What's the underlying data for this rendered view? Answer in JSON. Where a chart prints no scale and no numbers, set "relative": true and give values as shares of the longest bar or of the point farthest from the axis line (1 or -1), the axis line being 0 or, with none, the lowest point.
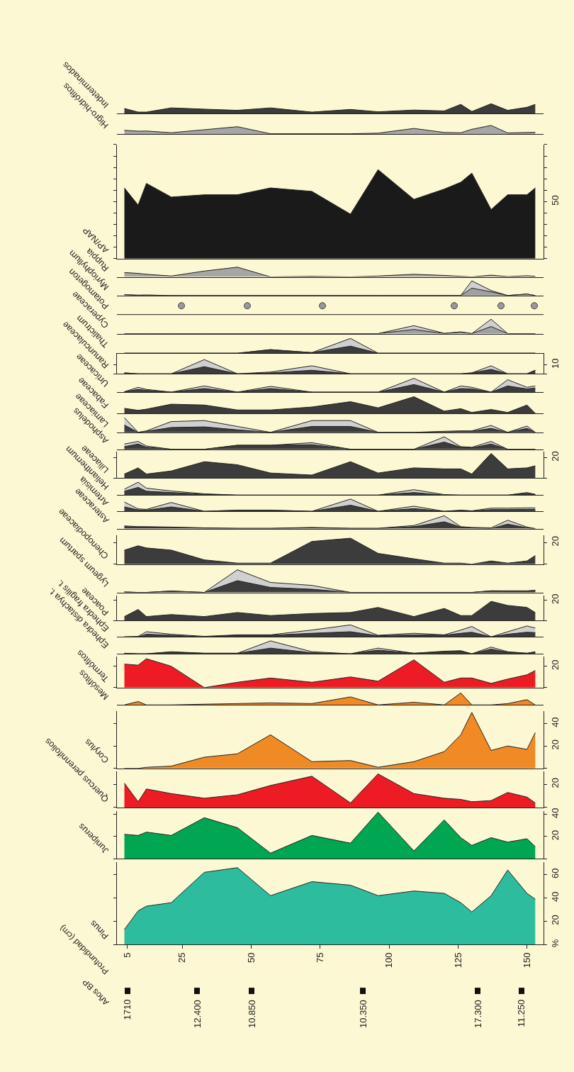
{
  "chart_data": [
    {
      "type": "area",
      "title": "Indeterminados",
      "relative": true,
      "tick_labels": false,
      "xlim": [
        1.3,
        156
      ],
      "x": [
        4,
        9,
        12,
        21,
        33,
        45,
        57,
        72,
        86,
        96,
        109,
        120,
        126,
        130,
        137,
        143,
        150,
        153
      ],
      "color": "#3c3c3c",
      "values": [
        0.52,
        0.15,
        0.15,
        0.58,
        0.45,
        0.33,
        0.58,
        0.15,
        0.42,
        0.18,
        0.36,
        0.27,
        0.94,
        0.21,
        1,
        0.33,
        0.64,
        0.94
      ]
    },
    {
      "type": "area",
      "title": "Higro-hidrófitos",
      "relative": true,
      "tick_labels": false,
      "xlim": [
        1.3,
        156
      ],
      "x": [
        4,
        9,
        12,
        21,
        33,
        45,
        57,
        72,
        86,
        96,
        109,
        120,
        126,
        130,
        137,
        143,
        150,
        153
      ],
      "color": "#a6a6a6",
      "values": [
        0.43,
        0.33,
        0.35,
        0.15,
        0.5,
        0.85,
        0.03,
        0.03,
        0.03,
        0.1,
        0.65,
        0.18,
        0.15,
        0.55,
        1,
        0.13,
        0.18,
        0.2
      ]
    },
    {
      "type": "area",
      "title": "AP/NAP",
      "tick_labels": "y",
      "xlim": [
        1.3,
        156
      ],
      "ylim": [
        0,
        100
      ],
      "yticks": [
        {
          "value": 0,
          "label": null
        },
        {
          "value": 10,
          "label": null
        },
        {
          "value": 20,
          "label": null
        },
        {
          "value": 30,
          "label": null
        },
        {
          "value": 40,
          "label": null
        },
        50,
        {
          "value": 60,
          "label": null
        },
        {
          "value": 70,
          "label": null
        },
        {
          "value": 80,
          "label": null
        },
        {
          "value": 90,
          "label": null
        },
        {
          "value": 100,
          "label": null
        }
      ],
      "x": [
        4,
        9,
        12,
        21,
        33,
        45,
        57,
        72,
        86,
        96,
        109,
        120,
        126,
        130,
        137,
        143,
        150,
        153
      ],
      "color": "#1a1a1a",
      "values": [
        62,
        47,
        66,
        54,
        56,
        56,
        62,
        59,
        39,
        78,
        52,
        61,
        67,
        75,
        43,
        56,
        56,
        62
      ]
    },
    {
      "type": "area",
      "title": "Ruppia",
      "relative": true,
      "tick_labels": false,
      "xlim": [
        1.3,
        156
      ],
      "x": [
        4,
        9,
        12,
        21,
        33,
        45,
        57,
        72,
        86,
        96,
        109,
        120,
        126,
        130,
        137,
        143,
        150,
        153
      ],
      "color": "#a6a6a6",
      "values": [
        0.45,
        0.36,
        0.27,
        0.09,
        0.6,
        1,
        0,
        0.06,
        0,
        0.09,
        0.27,
        0.15,
        0.06,
        0,
        0.18,
        0.03,
        0.12,
        0.06
      ]
    },
    {
      "type": "area",
      "title": "Myriophyllum",
      "relative": true,
      "tick_labels": false,
      "xlim": [
        1.3,
        156
      ],
      "x": [
        4,
        9,
        12,
        21,
        33,
        45,
        57,
        72,
        86,
        96,
        109,
        120,
        126,
        130,
        137,
        143,
        150,
        153
      ],
      "series": [
        {
          "color": "#d0d0d0",
          "values": [
            0.06,
            0.03,
            0.03,
            0,
            0,
            0,
            0,
            0,
            0,
            0,
            0,
            0,
            0,
            1,
            0.34,
            0,
            0.1,
            0
          ]
        },
        {
          "color": "#a0a0a0",
          "values": [
            0.06,
            0,
            0.03,
            0,
            0,
            0,
            0,
            0,
            0,
            0,
            0,
            0,
            0,
            0.5,
            0.25,
            0,
            0.1,
            0
          ]
        }
      ]
    },
    {
      "type": "other",
      "title": "Potamogeton"
    },
    {
      "type": "area",
      "title": "Cyperaceae",
      "relative": true,
      "tick_labels": false,
      "xlim": [
        1.3,
        156
      ],
      "x": [
        4,
        9,
        12,
        21,
        33,
        45,
        57,
        72,
        86,
        96,
        109,
        120,
        126,
        130,
        137,
        143,
        150,
        153
      ],
      "series": [
        {
          "color": "#d0d0d0",
          "values": [
            0,
            0,
            0,
            0,
            0,
            0,
            0,
            0,
            0,
            0,
            0.55,
            0.02,
            0.12,
            0,
            1,
            0,
            0,
            0
          ]
        },
        {
          "color": "#a0a0a0",
          "values": [
            0,
            0,
            0,
            0,
            0,
            0,
            0,
            0,
            0,
            0,
            0.29,
            0,
            0.1,
            0,
            0.49,
            0,
            0,
            0
          ]
        }
      ]
    },
    {
      "type": "area",
      "title": "Thalictrum",
      "relative": true,
      "tick_labels": false,
      "xlim": [
        1.3,
        156
      ],
      "x": [
        4,
        9,
        12,
        21,
        33,
        45,
        57,
        72,
        86,
        96,
        109,
        120,
        126,
        130,
        137,
        143,
        150,
        153
      ],
      "series": [
        {
          "color": "#d0d0d0",
          "values": [
            0,
            0,
            0,
            0,
            0,
            0,
            0.24,
            0.04,
            1,
            0,
            0,
            0,
            0,
            0,
            0,
            0,
            0,
            0
          ]
        },
        {
          "color": "#3c3c3c",
          "values": [
            0,
            0,
            0,
            0,
            0,
            0,
            0.24,
            0.04,
            0.48,
            0,
            0,
            0,
            0,
            0,
            0,
            0,
            0,
            0
          ]
        }
      ]
    },
    {
      "type": "area",
      "title": "Ranunculaceae",
      "tick_labels": "y",
      "xlim": [
        1.3,
        156
      ],
      "ylim": [
        0,
        23
      ],
      "yticks": [
        {
          "value": 0,
          "label": null
        },
        10
      ],
      "x": [
        4,
        9,
        12,
        21,
        33,
        45,
        57,
        72,
        86,
        96,
        109,
        120,
        126,
        130,
        137,
        143,
        150,
        153
      ],
      "series": [
        {
          "color": "#d0d0d0",
          "values": [
            1,
            0,
            0,
            0,
            16,
            0,
            2,
            9,
            0,
            0,
            0,
            0,
            0,
            1,
            9,
            0,
            0,
            4
          ]
        },
        {
          "color": "#3c3c3c",
          "values": [
            1,
            0,
            0,
            0,
            8,
            0,
            1,
            4,
            0,
            0,
            0,
            0,
            0,
            1,
            5,
            0,
            0,
            4
          ]
        }
      ]
    },
    {
      "type": "area",
      "title": "Urticaceae",
      "relative": true,
      "tick_labels": false,
      "xlim": [
        1.3,
        156
      ],
      "x": [
        4,
        9,
        12,
        21,
        33,
        45,
        57,
        72,
        86,
        96,
        109,
        120,
        126,
        130,
        137,
        143,
        150,
        153
      ],
      "series": [
        {
          "color": "#d0d0d0",
          "values": [
            0.03,
            0.35,
            0.2,
            0,
            0.45,
            0,
            0.42,
            0,
            0,
            0,
            1,
            0,
            0.45,
            0.35,
            0,
            0.9,
            0.35,
            0.45
          ]
        },
        {
          "color": "#3c3c3c",
          "values": [
            0.03,
            0.2,
            0.13,
            0,
            0.26,
            0,
            0.26,
            0,
            0,
            0,
            0.55,
            0,
            0.26,
            0.23,
            0,
            0.45,
            0.23,
            0.3
          ]
        }
      ]
    },
    {
      "type": "area",
      "title": "Fabaceae",
      "relative": true,
      "tick_labels": false,
      "xlim": [
        1.3,
        156
      ],
      "x": [
        4,
        9,
        12,
        21,
        33,
        45,
        57,
        72,
        86,
        96,
        109,
        120,
        126,
        130,
        137,
        143,
        150,
        153
      ],
      "color": "#3c3c3c",
      "values": [
        0.3,
        0.18,
        0.25,
        0.55,
        0.5,
        0.2,
        0.2,
        0.38,
        0.7,
        0.33,
        1,
        0.13,
        0.28,
        0.05,
        0.23,
        0.05,
        0.5,
        0
      ]
    },
    {
      "type": "area",
      "title": "Lamiaceae",
      "relative": true,
      "tick_labels": false,
      "xlim": [
        1.3,
        156
      ],
      "x": [
        4,
        9,
        12,
        21,
        33,
        45,
        57,
        72,
        86,
        96,
        109,
        120,
        126,
        130,
        137,
        143,
        150,
        153
      ],
      "series": [
        {
          "color": "#d0d0d0",
          "values": [
            1,
            0,
            0.1,
            0.73,
            0.8,
            0.4,
            0,
            0.8,
            0.8,
            0,
            0,
            0.07,
            0.1,
            0.1,
            0.47,
            0,
            0.43,
            0
          ]
        },
        {
          "color": "#3c3c3c",
          "values": [
            0.5,
            0,
            0.07,
            0.33,
            0.37,
            0.17,
            0,
            0.4,
            0.4,
            0,
            0,
            0.03,
            0.07,
            0.07,
            0.27,
            0,
            0.27,
            0
          ]
        }
      ]
    },
    {
      "type": "area",
      "title": "Asphodelus",
      "relative": true,
      "tick_labels": false,
      "xlim": [
        1.3,
        156
      ],
      "x": [
        4,
        9,
        12,
        21,
        33,
        45,
        57,
        72,
        86,
        96,
        109,
        120,
        126,
        130,
        137,
        143,
        150,
        153
      ],
      "series": [
        {
          "color": "#d0d0d0",
          "values": [
            0.42,
            0.63,
            0.26,
            0,
            0,
            0.32,
            0.32,
            0.53,
            0,
            0,
            0,
            1,
            0.21,
            0.16,
            0.63,
            0,
            0,
            0
          ]
        },
        {
          "color": "#3c3c3c",
          "values": [
            0.21,
            0.42,
            0.16,
            0,
            0,
            0.32,
            0.32,
            0.37,
            0,
            0,
            0,
            0.58,
            0.16,
            0.11,
            0.42,
            0,
            0,
            0
          ]
        }
      ]
    },
    {
      "type": "area",
      "title": "Liliaceae",
      "tick_labels": "y",
      "xlim": [
        1.3,
        156
      ],
      "ylim": [
        0,
        26
      ],
      "yticks": [
        {
          "value": 0,
          "label": null
        },
        20
      ],
      "x": [
        4,
        9,
        12,
        21,
        33,
        45,
        57,
        72,
        86,
        96,
        109,
        120,
        126,
        130,
        137,
        143,
        150,
        153
      ],
      "color": "#3c3c3c",
      "values": [
        4,
        10,
        4,
        7,
        16,
        13,
        5,
        3,
        16,
        5,
        10,
        9,
        9,
        4,
        24,
        9,
        10,
        12
      ]
    },
    {
      "type": "area",
      "title": "Helianthemum",
      "relative": true,
      "tick_labels": false,
      "xlim": [
        1.3,
        156
      ],
      "x": [
        4,
        9,
        12,
        21,
        33,
        45,
        57,
        72,
        86,
        96,
        109,
        120,
        126,
        130,
        137,
        143,
        150,
        153
      ],
      "series": [
        {
          "color": "#d0d0d0",
          "values": [
            0.46,
            1,
            0.54,
            0.32,
            0.1,
            0,
            0,
            0,
            0,
            0,
            0.42,
            0.04,
            0,
            0,
            0,
            0,
            0.2,
            0.06
          ]
        },
        {
          "color": "#3c3c3c",
          "values": [
            0.3,
            0.6,
            0.3,
            0.2,
            0.06,
            0,
            0,
            0,
            0,
            0,
            0.2,
            0,
            0,
            0,
            0,
            0,
            0.14,
            0.04
          ]
        }
      ]
    },
    {
      "type": "area",
      "title": "Artemisia",
      "relative": true,
      "tick_labels": false,
      "xlim": [
        1.3,
        156
      ],
      "x": [
        4,
        9,
        12,
        21,
        33,
        45,
        57,
        72,
        86,
        96,
        109,
        120,
        126,
        130,
        137,
        143,
        150,
        153
      ],
      "series": [
        {
          "color": "#d0d0d0",
          "values": [
            0.76,
            0.2,
            0.16,
            0.72,
            0,
            0.1,
            0.1,
            0,
            1,
            0,
            0.42,
            0,
            0.1,
            0.04,
            0.26,
            0.26,
            0.28,
            0.28
          ]
        },
        {
          "color": "#3c3c3c",
          "values": [
            0.36,
            0.12,
            0.1,
            0.36,
            0,
            0.08,
            0.08,
            0,
            0.5,
            0,
            0.22,
            0,
            0.06,
            0.02,
            0.14,
            0.14,
            0.16,
            0.16
          ]
        }
      ]
    },
    {
      "type": "area",
      "title": "Asteraceae",
      "relative": true,
      "tick_labels": false,
      "xlim": [
        1.3,
        156
      ],
      "x": [
        4,
        9,
        12,
        21,
        33,
        45,
        57,
        72,
        86,
        96,
        109,
        120,
        126,
        130,
        137,
        143,
        150,
        153
      ],
      "series": [
        {
          "color": "#d0d0d0",
          "values": [
            0.21,
            0.15,
            0.15,
            0.12,
            0.06,
            0.03,
            0.03,
            0.09,
            0.03,
            0.03,
            0.24,
            1,
            0.15,
            0.09,
            0.06,
            0.65,
            0.12,
            0
          ]
        },
        {
          "color": "#3c3c3c",
          "values": [
            0.15,
            0.12,
            0.12,
            0.09,
            0.03,
            0,
            0,
            0.06,
            0,
            0,
            0.15,
            0.53,
            0.12,
            0.06,
            0,
            0.35,
            0.06,
            0
          ]
        }
      ]
    },
    {
      "type": "area",
      "title": "Chenopodiaceae",
      "tick_labels": "y",
      "xlim": [
        1.3,
        156
      ],
      "ylim": [
        0,
        27
      ],
      "yticks": [
        {
          "value": 0,
          "label": null
        },
        20
      ],
      "x": [
        4,
        9,
        12,
        21,
        33,
        45,
        57,
        72,
        86,
        96,
        109,
        120,
        126,
        130,
        137,
        143,
        150,
        153
      ],
      "color": "#3c3c3c",
      "values": [
        13,
        17,
        15,
        13,
        4,
        1,
        1,
        21,
        24,
        10,
        5,
        1,
        1,
        0,
        3,
        1,
        3,
        8
      ]
    },
    {
      "type": "area",
      "title": "Lygeum spartum",
      "relative": true,
      "tick_labels": false,
      "xlim": [
        1.3,
        156
      ],
      "x": [
        4,
        9,
        12,
        21,
        33,
        45,
        57,
        72,
        86,
        96,
        109,
        120,
        126,
        130,
        137,
        143,
        150,
        153
      ],
      "series": [
        {
          "color": "#d0d0d0",
          "values": [
            0.02,
            0,
            0,
            0.06,
            0,
            1,
            0.44,
            0.31,
            0,
            0,
            0,
            0,
            0,
            0,
            0.07,
            0.07,
            0.07,
            0.09
          ]
        },
        {
          "color": "#3c3c3c",
          "values": [
            0.02,
            0,
            0,
            0.06,
            0,
            0.52,
            0.22,
            0.14,
            0,
            0,
            0,
            0,
            0,
            0,
            0.07,
            0.06,
            0.06,
            0.09
          ]
        }
      ]
    },
    {
      "type": "area",
      "title": "Poaceae",
      "tick_labels": "y",
      "xlim": [
        1.3,
        156
      ],
      "ylim": [
        0,
        25
      ],
      "yticks": [
        {
          "value": 0,
          "label": null
        },
        20
      ],
      "x": [
        4,
        9,
        12,
        21,
        33,
        45,
        57,
        72,
        86,
        96,
        109,
        120,
        126,
        130,
        137,
        143,
        150,
        153
      ],
      "color": "#3c3c3c",
      "values": [
        4,
        11,
        4,
        6,
        4,
        8,
        5,
        7,
        8,
        13,
        4,
        12,
        5,
        5,
        19,
        15,
        13,
        8
      ]
    },
    {
      "type": "area",
      "title": "Ephedra fragilis t.",
      "relative": true,
      "tick_labels": false,
      "xlim": [
        1.3,
        156
      ],
      "x": [
        4,
        9,
        12,
        21,
        33,
        45,
        57,
        72,
        86,
        96,
        109,
        120,
        126,
        130,
        137,
        143,
        150,
        153
      ],
      "series": [
        {
          "color": "#d0d0d0",
          "values": [
            0,
            0.04,
            0.43,
            0.22,
            0.04,
            0.17,
            0.17,
            0.57,
            1,
            0.13,
            0.3,
            0.17,
            0.57,
            0.87,
            0,
            0.43,
            0.91,
            0.74
          ]
        },
        {
          "color": "#3c3c3c",
          "values": [
            0,
            0,
            0.22,
            0.13,
            0,
            0.13,
            0.13,
            0.3,
            0.43,
            0.09,
            0.17,
            0.13,
            0.3,
            0.39,
            0,
            0.22,
            0.39,
            0.35
          ]
        }
      ]
    },
    {
      "type": "area",
      "title": "Ephedra distachya t.",
      "relative": true,
      "tick_labels": false,
      "xlim": [
        1.3,
        156
      ],
      "x": [
        4,
        9,
        12,
        21,
        33,
        45,
        57,
        72,
        86,
        96,
        109,
        120,
        126,
        130,
        137,
        143,
        150,
        153
      ],
      "series": [
        {
          "color": "#d0d0d0",
          "values": [
            0.04,
            0,
            0,
            0.16,
            0.04,
            0.04,
            1,
            0.16,
            0,
            0.44,
            0.04,
            0.2,
            0.24,
            0,
            0.52,
            0.16,
            0.04,
            0.16
          ]
        },
        {
          "color": "#3c3c3c",
          "values": [
            0.04,
            0,
            0,
            0.12,
            0.04,
            0.04,
            0.44,
            0.08,
            0,
            0.28,
            0.04,
            0.16,
            0.2,
            0,
            0.36,
            0.12,
            0.04,
            0.12
          ]
        }
      ]
    },
    {
      "type": "area",
      "title": "Termófitos",
      "tick_labels": "y",
      "xlim": [
        1.3,
        156
      ],
      "ylim": [
        0,
        29
      ],
      "yticks": [
        {
          "value": 0,
          "label": null
        },
        20
      ],
      "x": [
        4,
        9,
        12,
        21,
        33,
        45,
        57,
        72,
        86,
        96,
        109,
        120,
        126,
        130,
        137,
        143,
        150,
        153
      ],
      "color": "#ed1c24",
      "values": [
        22,
        21,
        27,
        20,
        0,
        5,
        9,
        5,
        10,
        6,
        26,
        5,
        9,
        9,
        4,
        8,
        12,
        16
      ]
    },
    {
      "type": "area",
      "title": "Mesófitos",
      "relative": true,
      "tick_labels": false,
      "xlim": [
        1.3,
        156
      ],
      "x": [
        4,
        9,
        12,
        21,
        33,
        45,
        57,
        72,
        86,
        96,
        109,
        120,
        126,
        130,
        137,
        143,
        150,
        153
      ],
      "color": "#f08a24",
      "values": [
        0,
        0.28,
        0,
        0,
        0.06,
        0.11,
        0.17,
        0.11,
        0.67,
        0,
        0.22,
        0,
        1,
        0,
        0,
        0.11,
        0.44,
        0
      ]
    },
    {
      "type": "area",
      "title": "Corylus",
      "tick_labels": "y",
      "xlim": [
        1.3,
        156
      ],
      "ylim": [
        0,
        51
      ],
      "yticks": [
        {
          "value": 0,
          "label": null
        },
        20,
        40
      ],
      "x": [
        4,
        9,
        12,
        21,
        33,
        45,
        57,
        72,
        86,
        96,
        109,
        120,
        126,
        130,
        137,
        143,
        150,
        153
      ],
      "color": "#f08a24",
      "values": [
        0,
        0,
        1,
        2,
        10,
        13,
        30,
        6,
        7,
        1,
        6,
        15,
        30,
        50,
        16,
        20,
        17,
        32
      ]
    },
    {
      "type": "area",
      "title": "Quercus perennifolios",
      "tick_labels": "y",
      "xlim": [
        1.3,
        156
      ],
      "ylim": [
        0,
        31
      ],
      "yticks": [
        {
          "value": 0,
          "label": null
        },
        20
      ],
      "x": [
        4,
        9,
        12,
        21,
        33,
        45,
        57,
        72,
        86,
        96,
        109,
        120,
        126,
        130,
        137,
        143,
        150,
        153
      ],
      "color": "#ed1c24",
      "values": [
        21,
        5,
        16,
        12,
        8,
        11,
        19,
        27,
        4,
        29,
        12,
        8,
        7,
        5,
        6,
        13,
        9,
        4
      ]
    },
    {
      "type": "area",
      "title": "Juniperus",
      "tick_labels": "y",
      "xlim": [
        1.3,
        156
      ],
      "ylim": [
        0,
        43
      ],
      "yticks": [
        {
          "value": 0,
          "label": null
        },
        20,
        40
      ],
      "x": [
        4,
        9,
        12,
        21,
        33,
        45,
        57,
        72,
        86,
        96,
        109,
        120,
        126,
        130,
        137,
        143,
        150,
        153
      ],
      "color": "#00a651",
      "values": [
        22,
        21,
        24,
        21,
        37,
        28,
        5,
        21,
        14,
        42,
        7,
        35,
        19,
        12,
        19,
        15,
        18,
        11
      ]
    },
    {
      "type": "area",
      "title": "Pinus",
      "xlabel": "Profundidad (cm)",
      "xlim": [
        1.3,
        156
      ],
      "xticks": [
        5,
        25,
        50,
        75,
        100,
        125,
        150
      ],
      "ylim": [
        0,
        71
      ],
      "yticks": [
        {
          "value": 0,
          "label": "%"
        },
        20,
        40,
        60
      ],
      "x": [
        4,
        9,
        12,
        21,
        33,
        45,
        57,
        72,
        86,
        96,
        109,
        120,
        126,
        130,
        137,
        143,
        150,
        153
      ],
      "color": "#2dbd9e",
      "values": [
        13,
        29,
        33,
        36,
        62,
        66,
        42,
        54,
        51,
        42,
        46,
        44,
        36,
        28,
        42,
        64,
        44,
        39
      ],
      "annotations": [
        "Años BP",
        "1710",
        "12.400",
        "10.850",
        "10.350",
        "17.300",
        "11.250"
      ]
    }
  ]
}
